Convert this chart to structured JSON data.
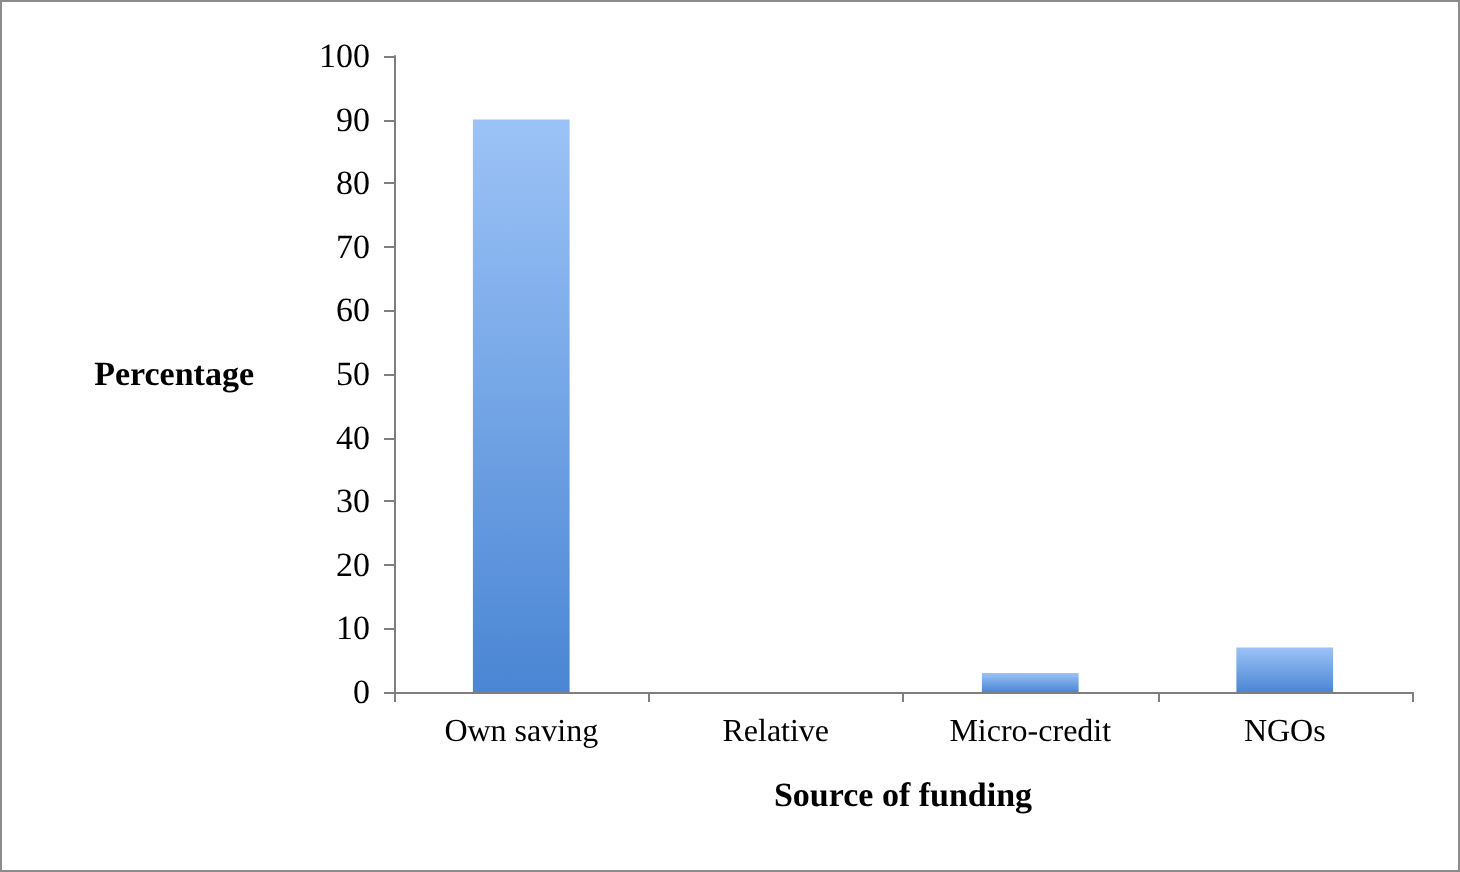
{
  "chart_data": {
    "type": "bar",
    "xlabel": "Source of funding",
    "ylabel": "Percentage",
    "categories": [
      "Own saving",
      "Relative",
      "Micro-credit",
      "NGOs"
    ],
    "values": [
      90,
      0,
      3,
      7
    ],
    "color": "#4a86d4",
    "ylim": [
      0,
      100
    ],
    "yticks": [
      0,
      10,
      20,
      30,
      40,
      50,
      60,
      70,
      80,
      90,
      100
    ],
    "grid": false
  }
}
